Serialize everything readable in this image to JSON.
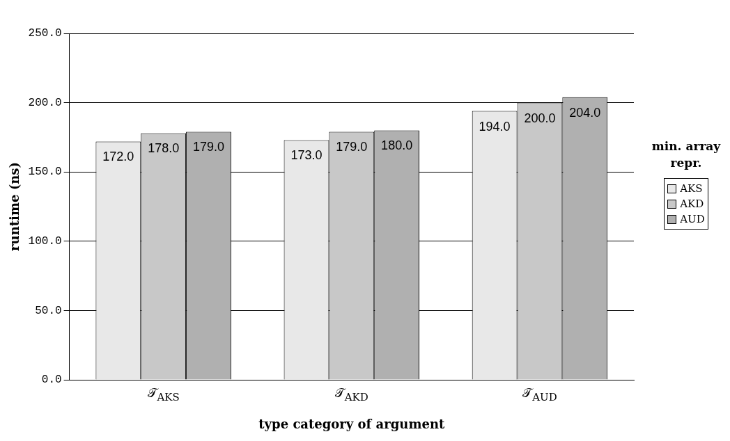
{
  "chart_data": {
    "type": "bar",
    "xlabel": "type category of argument",
    "ylabel": "runtime (ns)",
    "legend_title": "min. array repr.",
    "categories": [
      "𝒯$_{AKS}$",
      "𝒯$_{AKD}$",
      "𝒯$_{AUD}$"
    ],
    "series": [
      {
        "name": "AKS",
        "color": "#e8e8e8",
        "values": [
          172,
          173,
          194
        ]
      },
      {
        "name": "AKD",
        "color": "#c8c8c8",
        "values": [
          178,
          179,
          200
        ]
      },
      {
        "name": "AUD",
        "color": "#b0b0b0",
        "values": [
          179,
          180,
          204
        ]
      }
    ],
    "value_labels": [
      [
        "172.0",
        "173.0",
        "194.0"
      ],
      [
        "178.0",
        "179.0",
        "200.0"
      ],
      [
        "179.0",
        "180.0",
        "204.0"
      ]
    ],
    "ylim": [
      0,
      250
    ],
    "yticks": [
      {
        "value": 0,
        "label": "0.0"
      },
      {
        "value": 50,
        "label": "50.0"
      },
      {
        "value": 100,
        "label": "100.0"
      },
      {
        "value": 150,
        "label": "150.0"
      },
      {
        "value": 200,
        "label": "200.0"
      },
      {
        "value": 250,
        "label": "250.0"
      }
    ],
    "grid": "y",
    "legend": "right"
  }
}
